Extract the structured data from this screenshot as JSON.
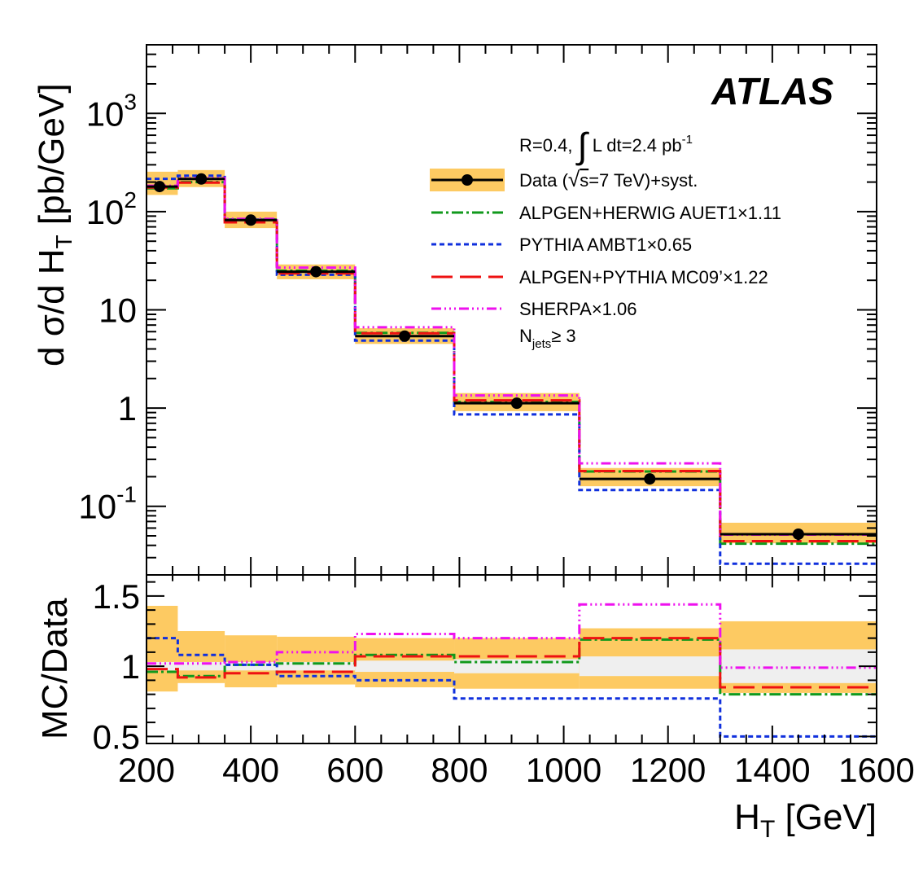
{
  "chart_data": {
    "type": "histogram-with-ratio",
    "brand": "ATLAS",
    "x_axis": {
      "label": "H",
      "label_sub": "T",
      "label_unit": " [GeV]",
      "range": [
        200,
        1600
      ],
      "ticks": [
        200,
        400,
        600,
        800,
        1000,
        1200,
        1400,
        1600
      ]
    },
    "main_panel": {
      "ylabel_pre": "d σ/d H",
      "ylabel_sub": "T",
      "ylabel_post": " [pb/GeV]",
      "yscale": "log",
      "ylim": [
        0.02,
        5000
      ],
      "major_ticks": [
        {
          "value": 0.1,
          "label": "10",
          "exp": "-1"
        },
        {
          "value": 1,
          "label": "1",
          "exp": ""
        },
        {
          "value": 10,
          "label": "10",
          "exp": ""
        },
        {
          "value": 100,
          "label": "10",
          "exp": "2"
        },
        {
          "value": 1000,
          "label": "10",
          "exp": "3"
        }
      ]
    },
    "ratio_panel": {
      "ylabel": "MC/Data",
      "ylim": [
        0.45,
        1.65
      ],
      "ticks": [
        {
          "value": 0.5,
          "label": "0.5"
        },
        {
          "value": 1,
          "label": "1"
        },
        {
          "value": 1.5,
          "label": "1.5"
        }
      ]
    },
    "bin_edges": [
      200,
      260,
      350,
      450,
      600,
      790,
      1030,
      1300,
      1600
    ],
    "data": {
      "name": "Data",
      "x": [
        225,
        305,
        400,
        525,
        695,
        910,
        1165,
        1450
      ],
      "y": [
        180,
        215,
        82,
        24.5,
        5.4,
        1.12,
        0.19,
        0.052
      ],
      "syst_low": [
        148,
        178,
        68,
        20.5,
        4.5,
        0.93,
        0.16,
        0.042
      ],
      "syst_high": [
        255,
        265,
        100,
        29,
        6.5,
        1.42,
        0.245,
        0.068
      ],
      "stat_err": [
        0,
        0,
        0,
        0,
        0,
        0,
        0,
        0.007
      ]
    },
    "ratio_syst": {
      "low": [
        0.82,
        0.88,
        0.85,
        0.87,
        0.85,
        0.84,
        0.84,
        0.81
      ],
      "high": [
        1.43,
        1.25,
        1.22,
        1.21,
        1.2,
        1.2,
        1.27,
        1.32
      ]
    },
    "ratio_stat": {
      "low": [
        0.97,
        0.97,
        0.97,
        0.97,
        0.96,
        0.95,
        0.93,
        0.88
      ],
      "high": [
        1.03,
        1.03,
        1.03,
        1.03,
        1.04,
        1.05,
        1.07,
        1.12
      ]
    },
    "series": [
      {
        "key": "alpgen_herwig",
        "name": "ALPGEN+HERWIG AUET1×1.11",
        "color": "#11991c",
        "dash": "14,4,3,4",
        "ratio": [
          0.96,
          0.93,
          1.01,
          1.02,
          1.08,
          1.03,
          1.19,
          0.8
        ]
      },
      {
        "key": "pythia",
        "name": "PYTHIA AMBT1×0.65",
        "color": "#1030dd",
        "dash": "6,4",
        "ratio": [
          1.2,
          1.08,
          1.01,
          0.93,
          0.9,
          0.77,
          0.77,
          0.5
        ]
      },
      {
        "key": "alpgen_pythia",
        "name": "ALPGEN+PYTHIA MC09’×1.22",
        "color": "#ee1111",
        "dash": "26,9",
        "ratio": [
          0.98,
          0.92,
          0.95,
          0.96,
          1.07,
          1.07,
          1.2,
          0.85
        ]
      },
      {
        "key": "sherpa",
        "name": "SHERPA×1.06",
        "color": "#ee11ee",
        "dash": "12,4,2,4,2,4,2,4",
        "ratio": [
          1.02,
          1.02,
          1.03,
          1.1,
          1.23,
          1.2,
          1.44,
          0.99
        ]
      }
    ],
    "legend": {
      "position": "top-right",
      "header_pre": "R=0.4, ",
      "header_integral": "∫",
      "header_lumi": " L dt=2.4 pb",
      "header_lumi_exp": "-1",
      "data_entry_pre": "Data (",
      "data_entry_sqrt": "√",
      "data_entry_s": "s",
      "data_entry_post": "=7 TeV)+syst.",
      "njets_pre": "N",
      "njets_sub": "jets",
      "njets_post": "≥ 3"
    },
    "colors": {
      "syst_band": "#fdca62",
      "stat_band": "#efefef",
      "data": "#000000"
    }
  }
}
